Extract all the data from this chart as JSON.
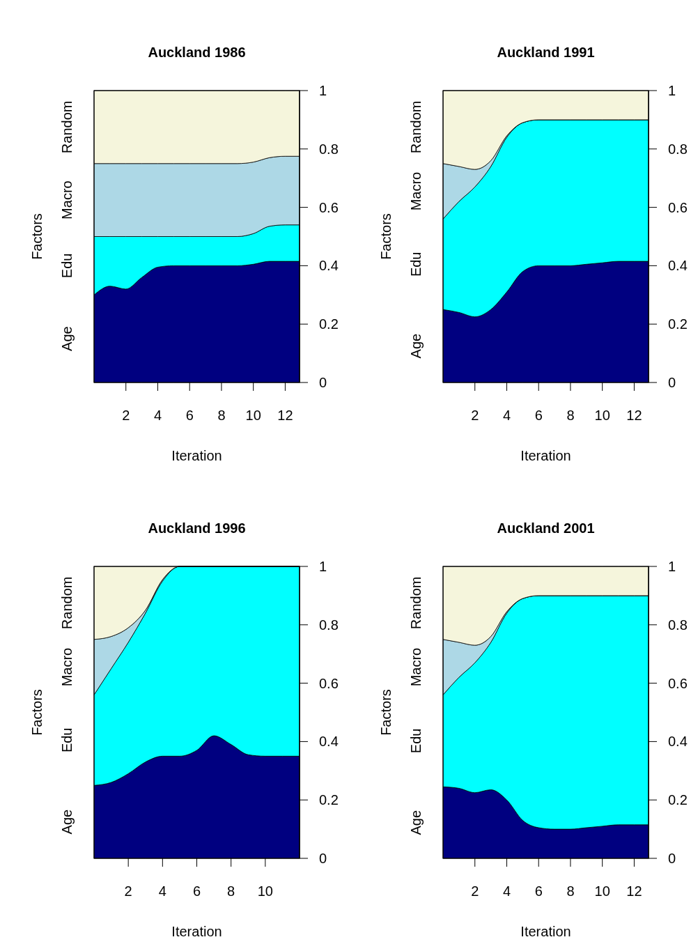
{
  "chart_data": [
    {
      "type": "area",
      "stacked": true,
      "title": "Auckland 1986",
      "xlabel": "Iteration",
      "ylabel": "Factors",
      "x": [
        0,
        1,
        2,
        3,
        4,
        5,
        6,
        7,
        8,
        9,
        10,
        11,
        12,
        12.9
      ],
      "xlim": [
        0,
        12.9
      ],
      "xticks": [
        2,
        4,
        6,
        8,
        10,
        12
      ],
      "ylim": [
        0,
        1
      ],
      "yticks": [
        0,
        0.2,
        0.4,
        0.6,
        0.8,
        1
      ],
      "grid": false,
      "series": [
        {
          "name": "Age",
          "color": "#000080",
          "values": [
            0.3,
            0.33,
            0.32,
            0.36,
            0.395,
            0.4,
            0.4,
            0.4,
            0.4,
            0.4,
            0.405,
            0.415,
            0.415,
            0.415
          ]
        },
        {
          "name": "Edu",
          "color": "#00ffff",
          "values": [
            0.2,
            0.17,
            0.18,
            0.14,
            0.105,
            0.1,
            0.1,
            0.1,
            0.1,
            0.1,
            0.105,
            0.12,
            0.125,
            0.125
          ]
        },
        {
          "name": "Macro",
          "color": "#add8e6",
          "values": [
            0.25,
            0.25,
            0.25,
            0.25,
            0.25,
            0.25,
            0.25,
            0.25,
            0.25,
            0.25,
            0.245,
            0.235,
            0.235,
            0.235
          ]
        },
        {
          "name": "Random",
          "color": "#f5f5dc",
          "values": [
            0.25,
            0.25,
            0.25,
            0.25,
            0.25,
            0.25,
            0.25,
            0.25,
            0.25,
            0.25,
            0.245,
            0.23,
            0.225,
            0.225
          ]
        }
      ]
    },
    {
      "type": "area",
      "stacked": true,
      "title": "Auckland 1991",
      "xlabel": "Iteration",
      "ylabel": "Factors",
      "x": [
        0,
        1,
        2,
        3,
        4,
        5,
        6,
        7,
        8,
        9,
        10,
        11,
        12,
        12.9
      ],
      "xlim": [
        0,
        12.9
      ],
      "xticks": [
        2,
        4,
        6,
        8,
        10,
        12
      ],
      "ylim": [
        0,
        1
      ],
      "yticks": [
        0,
        0.2,
        0.4,
        0.6,
        0.8,
        1
      ],
      "grid": false,
      "series": [
        {
          "name": "Age",
          "color": "#000080",
          "values": [
            0.25,
            0.24,
            0.225,
            0.25,
            0.31,
            0.38,
            0.4,
            0.4,
            0.4,
            0.405,
            0.41,
            0.415,
            0.415,
            0.415
          ]
        },
        {
          "name": "Edu",
          "color": "#00ffff",
          "values": [
            0.31,
            0.38,
            0.445,
            0.49,
            0.53,
            0.51,
            0.5,
            0.5,
            0.5,
            0.495,
            0.49,
            0.485,
            0.485,
            0.485
          ]
        },
        {
          "name": "Macro",
          "color": "#add8e6",
          "values": [
            0.19,
            0.12,
            0.06,
            0.02,
            0.005,
            0,
            0,
            0,
            0,
            0,
            0,
            0,
            0,
            0
          ]
        },
        {
          "name": "Random",
          "color": "#f5f5dc",
          "values": [
            0.25,
            0.26,
            0.27,
            0.24,
            0.155,
            0.11,
            0.1,
            0.1,
            0.1,
            0.1,
            0.1,
            0.1,
            0.1,
            0.1
          ]
        }
      ]
    },
    {
      "type": "area",
      "stacked": true,
      "title": "Auckland 1996",
      "xlabel": "Iteration",
      "ylabel": "Factors",
      "x": [
        0,
        1,
        2,
        3,
        4,
        5,
        6,
        7,
        8,
        9,
        10,
        11,
        12
      ],
      "xlim": [
        0,
        12
      ],
      "xticks": [
        2,
        4,
        6,
        8,
        10
      ],
      "ylim": [
        0,
        1
      ],
      "yticks": [
        0,
        0.2,
        0.4,
        0.6,
        0.8,
        1
      ],
      "grid": false,
      "series": [
        {
          "name": "Age",
          "color": "#000080",
          "values": [
            0.25,
            0.26,
            0.29,
            0.33,
            0.35,
            0.35,
            0.37,
            0.42,
            0.39,
            0.355,
            0.35,
            0.35,
            0.35
          ]
        },
        {
          "name": "Edu",
          "color": "#00ffff",
          "values": [
            0.31,
            0.39,
            0.45,
            0.51,
            0.6,
            0.65,
            0.63,
            0.58,
            0.61,
            0.645,
            0.65,
            0.65,
            0.65
          ]
        },
        {
          "name": "Macro",
          "color": "#add8e6",
          "values": [
            0.19,
            0.11,
            0.05,
            0.01,
            0.005,
            0,
            0,
            0,
            0,
            0,
            0,
            0,
            0
          ]
        },
        {
          "name": "Random",
          "color": "#f5f5dc",
          "values": [
            0.25,
            0.24,
            0.21,
            0.15,
            0.045,
            0,
            0,
            0,
            0,
            0,
            0,
            0,
            0
          ]
        }
      ]
    },
    {
      "type": "area",
      "stacked": true,
      "title": "Auckland 2001",
      "xlabel": "Iteration",
      "ylabel": "Factors",
      "x": [
        0,
        1,
        2,
        3,
        4,
        5,
        6,
        7,
        8,
        9,
        10,
        11,
        12,
        12.9
      ],
      "xlim": [
        0,
        12.9
      ],
      "xticks": [
        2,
        4,
        6,
        8,
        10,
        12
      ],
      "ylim": [
        0,
        1
      ],
      "yticks": [
        0,
        0.2,
        0.4,
        0.6,
        0.8,
        1
      ],
      "grid": false,
      "series": [
        {
          "name": "Age",
          "color": "#000080",
          "values": [
            0.245,
            0.24,
            0.225,
            0.235,
            0.2,
            0.13,
            0.105,
            0.1,
            0.1,
            0.105,
            0.11,
            0.115,
            0.115,
            0.115
          ]
        },
        {
          "name": "Edu",
          "color": "#00ffff",
          "values": [
            0.315,
            0.38,
            0.445,
            0.505,
            0.64,
            0.76,
            0.795,
            0.8,
            0.8,
            0.795,
            0.79,
            0.785,
            0.785,
            0.785
          ]
        },
        {
          "name": "Macro",
          "color": "#add8e6",
          "values": [
            0.19,
            0.12,
            0.06,
            0.02,
            0.005,
            0,
            0,
            0,
            0,
            0,
            0,
            0,
            0,
            0
          ]
        },
        {
          "name": "Random",
          "color": "#f5f5dc",
          "values": [
            0.25,
            0.26,
            0.27,
            0.24,
            0.155,
            0.11,
            0.1,
            0.1,
            0.1,
            0.1,
            0.1,
            0.1,
            0.1,
            0.1
          ]
        }
      ]
    }
  ]
}
